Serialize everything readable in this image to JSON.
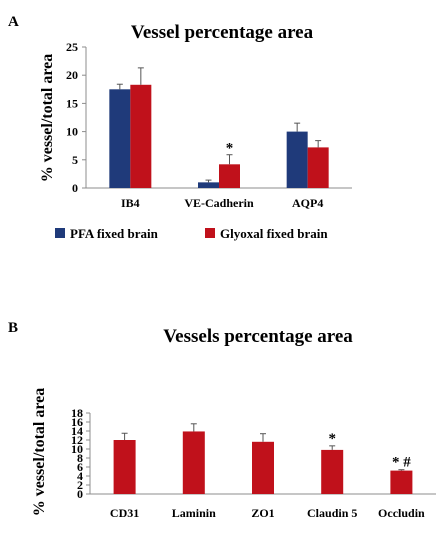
{
  "colors": {
    "pfa": "#1f3a7a",
    "glyoxal": "#c0111b",
    "red": "#c0111b",
    "axis": "#8c8c8c",
    "error": "#555555"
  },
  "chart_data": [
    {
      "panel": "A",
      "type": "bar",
      "title": "Vessel percentage area",
      "ylabel": "% vessel/total area",
      "xlabel": "",
      "ylim": [
        0,
        25
      ],
      "yticks": [
        "0",
        "5",
        "10",
        "15",
        "20",
        "25"
      ],
      "categories": [
        "IB4",
        "VE-Cadherin",
        "AQP4"
      ],
      "legend_position": "bottom",
      "series": [
        {
          "name": "PFA fixed brain",
          "values": [
            17.5,
            1.0,
            10.0
          ],
          "errors": [
            0.9,
            0.4,
            1.5
          ]
        },
        {
          "name": "Glyoxal fixed brain",
          "values": [
            18.3,
            4.2,
            7.2
          ],
          "errors": [
            3.0,
            1.7,
            1.2
          ]
        }
      ],
      "annotations": [
        {
          "category": "VE-Cadherin",
          "series": "Glyoxal fixed brain",
          "text": "*"
        }
      ]
    },
    {
      "panel": "B",
      "type": "bar",
      "title": "Vessels percentage area",
      "ylabel": "% vessel/total area",
      "xlabel": "",
      "ylim": [
        0,
        18
      ],
      "yticks": [
        "0",
        "2",
        "4",
        "6",
        "8",
        "10",
        "12",
        "14",
        "16",
        "18"
      ],
      "categories": [
        "CD31",
        "Laminin",
        "ZO1",
        "Claudin 5",
        "Occludin"
      ],
      "series": [
        {
          "values": [
            12.0,
            13.9,
            11.6,
            9.8,
            5.2
          ],
          "errors": [
            1.5,
            1.7,
            1.8,
            0.9,
            0.2
          ]
        }
      ],
      "annotations": [
        {
          "category": "Claudin 5",
          "text": "*"
        },
        {
          "category": "Occludin",
          "text": "* #"
        }
      ]
    }
  ]
}
